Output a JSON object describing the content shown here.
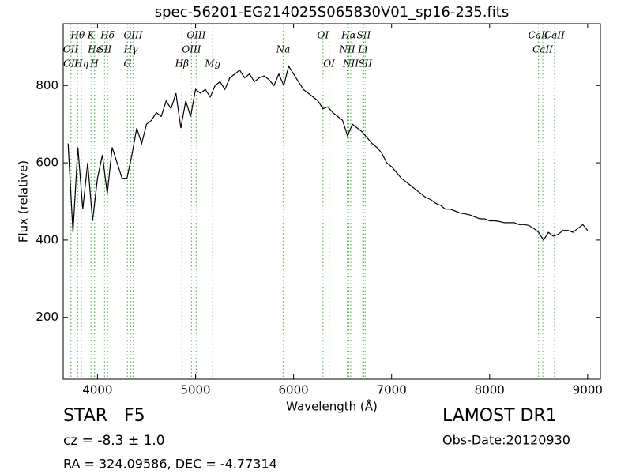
{
  "chart_data": {
    "type": "line",
    "title": "spec-56201-EG214025S065830V01_sp16-235.fits",
    "x_label": "Wavelength (Å)",
    "y_label": "Flux (relative)",
    "xlim": [
      3650,
      9130
    ],
    "ylim": [
      40,
      960
    ],
    "xticks": [
      4000,
      5000,
      6000,
      7000,
      8000,
      9000
    ],
    "yticks": [
      200,
      400,
      600,
      800
    ],
    "grid": false,
    "line_marker_color": "#66bb66",
    "x": [
      3700,
      3750,
      3800,
      3850,
      3900,
      3950,
      4000,
      4050,
      4100,
      4150,
      4200,
      4250,
      4300,
      4350,
      4400,
      4450,
      4500,
      4550,
      4600,
      4650,
      4700,
      4750,
      4800,
      4850,
      4900,
      4950,
      5000,
      5050,
      5100,
      5150,
      5200,
      5250,
      5300,
      5350,
      5400,
      5450,
      5500,
      5550,
      5600,
      5650,
      5700,
      5750,
      5800,
      5850,
      5900,
      5950,
      6000,
      6050,
      6100,
      6150,
      6200,
      6250,
      6300,
      6350,
      6400,
      6450,
      6500,
      6550,
      6600,
      6650,
      6700,
      6750,
      6800,
      6850,
      6900,
      6950,
      7000,
      7050,
      7100,
      7150,
      7200,
      7250,
      7300,
      7350,
      7400,
      7450,
      7500,
      7550,
      7600,
      7650,
      7700,
      7750,
      7800,
      7850,
      7900,
      7950,
      8000,
      8050,
      8100,
      8150,
      8200,
      8250,
      8300,
      8350,
      8400,
      8450,
      8500,
      8550,
      8600,
      8650,
      8700,
      8750,
      8800,
      8850,
      8900,
      8950,
      9000
    ],
    "series": [
      {
        "name": "Flux",
        "color": "#000000",
        "values": [
          650,
          420,
          640,
          480,
          600,
          450,
          560,
          620,
          520,
          640,
          600,
          560,
          560,
          620,
          690,
          650,
          700,
          710,
          730,
          720,
          760,
          740,
          780,
          690,
          760,
          720,
          790,
          780,
          790,
          770,
          800,
          810,
          790,
          820,
          830,
          840,
          820,
          830,
          810,
          820,
          825,
          815,
          800,
          830,
          800,
          850,
          830,
          810,
          790,
          780,
          770,
          760,
          740,
          745,
          730,
          720,
          710,
          670,
          700,
          690,
          680,
          665,
          650,
          640,
          625,
          600,
          590,
          575,
          560,
          550,
          540,
          530,
          520,
          510,
          505,
          495,
          490,
          480,
          480,
          475,
          470,
          468,
          465,
          460,
          455,
          455,
          450,
          450,
          448,
          445,
          445,
          445,
          440,
          440,
          438,
          430,
          420,
          400,
          420,
          410,
          415,
          425,
          425,
          420,
          430,
          440,
          425
        ]
      }
    ],
    "lines": [
      {
        "wavelength": 3798,
        "label": "Hθ"
      },
      {
        "wavelength": 3727,
        "label": "OII"
      },
      {
        "wavelength": 3729,
        "label": "OII"
      },
      {
        "wavelength": 3934,
        "label": "K"
      },
      {
        "wavelength": 3970,
        "label": "Hε"
      },
      {
        "wavelength": 3835,
        "label": "Hη"
      },
      {
        "wavelength": 4102,
        "label": "Hδ"
      },
      {
        "wavelength": 4072,
        "label": "SII"
      },
      {
        "wavelength": 3968,
        "label": "H"
      },
      {
        "wavelength": 4363,
        "label": "OIII"
      },
      {
        "wavelength": 4340,
        "label": "Hγ"
      },
      {
        "wavelength": 4305,
        "label": "G"
      },
      {
        "wavelength": 5007,
        "label": "OIII"
      },
      {
        "wavelength": 4959,
        "label": "OIII"
      },
      {
        "wavelength": 4861,
        "label": "Hβ"
      },
      {
        "wavelength": 6300,
        "label": "OI"
      },
      {
        "wavelength": 5894,
        "label": "Na"
      },
      {
        "wavelength": 5175,
        "label": "Mg"
      },
      {
        "wavelength": 6563,
        "label": "Hα"
      },
      {
        "wavelength": 6548,
        "label": "NII"
      },
      {
        "wavelength": 6363,
        "label": "OI"
      },
      {
        "wavelength": 6716,
        "label": "SII"
      },
      {
        "wavelength": 6707,
        "label": "Li"
      },
      {
        "wavelength": 6583,
        "label": "NII"
      },
      {
        "wavelength": 8498,
        "label": "CaII"
      },
      {
        "wavelength": 8542,
        "label": "CaII"
      },
      {
        "wavelength": 6731,
        "label": "SII"
      },
      {
        "wavelength": 8662,
        "label": "CaII"
      }
    ]
  },
  "annotations": {
    "object": "STAR   F5",
    "redshift": "cz = -8.3 ± 1.0",
    "coords": "RA = 324.09586, DEC = -4.77314",
    "survey": "LAMOST DR1",
    "date": "Obs-Date:20120930"
  }
}
